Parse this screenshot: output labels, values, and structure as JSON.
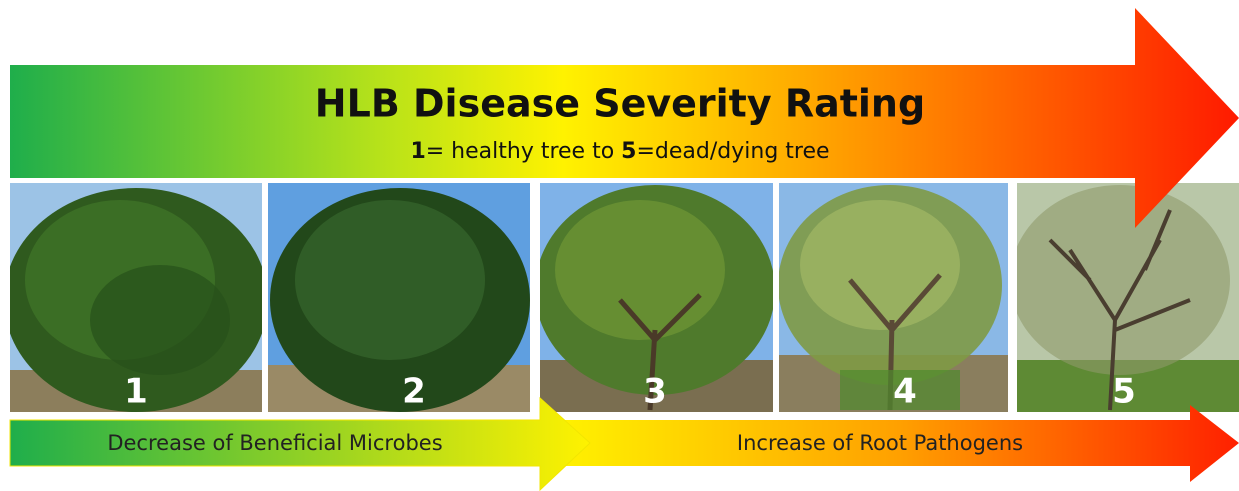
{
  "header": {
    "title": "HLB Disease Severity Rating",
    "subtitle": {
      "parts": [
        "1",
        "= healthy tree to ",
        "5",
        "=dead/dying tree"
      ]
    }
  },
  "photos": [
    {
      "label": "1"
    },
    {
      "label": "2"
    },
    {
      "label": "3"
    },
    {
      "label": "4"
    },
    {
      "label": "5"
    }
  ],
  "arrows": [
    {
      "label": "Decrease of Beneficial Microbes"
    },
    {
      "label": "Increase of Root Pathogens"
    }
  ]
}
